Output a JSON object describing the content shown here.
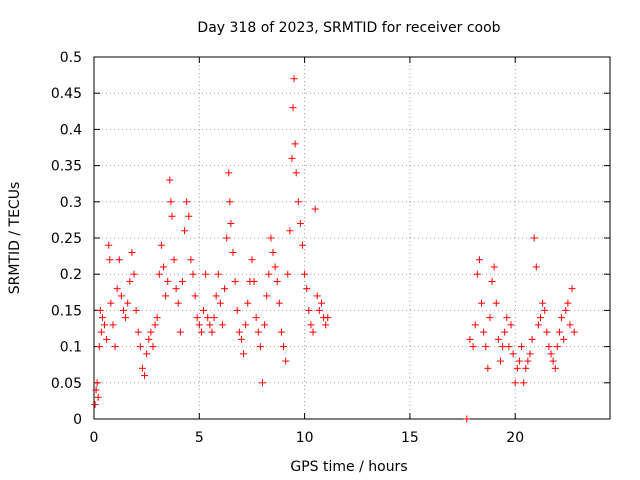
{
  "chart_data": {
    "type": "scatter",
    "title": "Day 318 of 2023, SRMTID for receiver coob",
    "xlabel": "GPS time / hours",
    "ylabel": "SRMTID / TECUs",
    "xlim": [
      0,
      24.5
    ],
    "ylim": [
      0,
      0.5
    ],
    "x_ticks": [
      0,
      5,
      10,
      15,
      20
    ],
    "x_tick_labels": [
      "0",
      "5",
      "10",
      "15",
      "20"
    ],
    "y_ticks": [
      0,
      0.05,
      0.1,
      0.15,
      0.2,
      0.25,
      0.3,
      0.35,
      0.4,
      0.45,
      0.5
    ],
    "y_tick_labels": [
      "0",
      "0.05",
      "0.1",
      "0.15",
      "0.2",
      "0.25",
      "0.3",
      "0.35",
      "0.4",
      "0.45",
      "0.5"
    ],
    "grid": true,
    "marker": "+",
    "marker_color": "#ff0000",
    "series": [
      {
        "name": "SRMTID",
        "points": [
          [
            0.05,
            0.02
          ],
          [
            0.1,
            0.04
          ],
          [
            0.15,
            0.05
          ],
          [
            0.2,
            0.03
          ],
          [
            0.25,
            0.1
          ],
          [
            0.3,
            0.15
          ],
          [
            0.35,
            0.12
          ],
          [
            0.4,
            0.14
          ],
          [
            0.5,
            0.13
          ],
          [
            0.6,
            0.11
          ],
          [
            0.7,
            0.24
          ],
          [
            0.75,
            0.22
          ],
          [
            0.8,
            0.16
          ],
          [
            0.9,
            0.13
          ],
          [
            1.0,
            0.1
          ],
          [
            1.1,
            0.18
          ],
          [
            1.2,
            0.22
          ],
          [
            1.3,
            0.17
          ],
          [
            1.4,
            0.15
          ],
          [
            1.5,
            0.14
          ],
          [
            1.6,
            0.16
          ],
          [
            1.7,
            0.19
          ],
          [
            1.8,
            0.23
          ],
          [
            1.9,
            0.2
          ],
          [
            2.0,
            0.15
          ],
          [
            2.1,
            0.12
          ],
          [
            2.2,
            0.1
          ],
          [
            2.3,
            0.07
          ],
          [
            2.4,
            0.06
          ],
          [
            2.5,
            0.09
          ],
          [
            2.6,
            0.11
          ],
          [
            2.7,
            0.12
          ],
          [
            2.8,
            0.1
          ],
          [
            2.9,
            0.13
          ],
          [
            3.0,
            0.14
          ],
          [
            3.1,
            0.2
          ],
          [
            3.2,
            0.24
          ],
          [
            3.3,
            0.21
          ],
          [
            3.4,
            0.17
          ],
          [
            3.5,
            0.19
          ],
          [
            3.6,
            0.33
          ],
          [
            3.65,
            0.3
          ],
          [
            3.7,
            0.28
          ],
          [
            3.8,
            0.22
          ],
          [
            3.9,
            0.18
          ],
          [
            4.0,
            0.16
          ],
          [
            4.1,
            0.12
          ],
          [
            4.2,
            0.19
          ],
          [
            4.3,
            0.26
          ],
          [
            4.4,
            0.3
          ],
          [
            4.5,
            0.28
          ],
          [
            4.6,
            0.22
          ],
          [
            4.7,
            0.2
          ],
          [
            4.8,
            0.17
          ],
          [
            4.9,
            0.14
          ],
          [
            5.0,
            0.13
          ],
          [
            5.1,
            0.12
          ],
          [
            5.2,
            0.15
          ],
          [
            5.3,
            0.2
          ],
          [
            5.4,
            0.14
          ],
          [
            5.5,
            0.13
          ],
          [
            5.6,
            0.12
          ],
          [
            5.7,
            0.14
          ],
          [
            5.8,
            0.17
          ],
          [
            5.9,
            0.2
          ],
          [
            6.0,
            0.16
          ],
          [
            6.1,
            0.13
          ],
          [
            6.2,
            0.18
          ],
          [
            6.3,
            0.25
          ],
          [
            6.4,
            0.34
          ],
          [
            6.45,
            0.3
          ],
          [
            6.5,
            0.27
          ],
          [
            6.6,
            0.23
          ],
          [
            6.7,
            0.19
          ],
          [
            6.8,
            0.15
          ],
          [
            6.9,
            0.12
          ],
          [
            7.0,
            0.11
          ],
          [
            7.1,
            0.09
          ],
          [
            7.2,
            0.13
          ],
          [
            7.3,
            0.16
          ],
          [
            7.4,
            0.19
          ],
          [
            7.5,
            0.22
          ],
          [
            7.6,
            0.19
          ],
          [
            7.7,
            0.14
          ],
          [
            7.8,
            0.12
          ],
          [
            7.9,
            0.1
          ],
          [
            8.0,
            0.05
          ],
          [
            8.1,
            0.13
          ],
          [
            8.2,
            0.17
          ],
          [
            8.3,
            0.2
          ],
          [
            8.4,
            0.25
          ],
          [
            8.5,
            0.23
          ],
          [
            8.6,
            0.21
          ],
          [
            8.7,
            0.19
          ],
          [
            8.8,
            0.16
          ],
          [
            8.9,
            0.12
          ],
          [
            9.0,
            0.1
          ],
          [
            9.1,
            0.08
          ],
          [
            9.2,
            0.2
          ],
          [
            9.3,
            0.26
          ],
          [
            9.4,
            0.36
          ],
          [
            9.45,
            0.43
          ],
          [
            9.5,
            0.47
          ],
          [
            9.55,
            0.38
          ],
          [
            9.6,
            0.34
          ],
          [
            9.7,
            0.3
          ],
          [
            9.8,
            0.27
          ],
          [
            9.9,
            0.24
          ],
          [
            10.0,
            0.2
          ],
          [
            10.1,
            0.18
          ],
          [
            10.2,
            0.15
          ],
          [
            10.3,
            0.13
          ],
          [
            10.4,
            0.12
          ],
          [
            10.5,
            0.29
          ],
          [
            10.6,
            0.17
          ],
          [
            10.7,
            0.15
          ],
          [
            10.8,
            0.16
          ],
          [
            10.9,
            0.14
          ],
          [
            11.0,
            0.13
          ],
          [
            11.1,
            0.14
          ],
          [
            17.7,
            0.0
          ],
          [
            17.85,
            0.11
          ],
          [
            18.0,
            0.1
          ],
          [
            18.1,
            0.13
          ],
          [
            18.2,
            0.2
          ],
          [
            18.3,
            0.22
          ],
          [
            18.4,
            0.16
          ],
          [
            18.5,
            0.12
          ],
          [
            18.6,
            0.1
          ],
          [
            18.7,
            0.07
          ],
          [
            18.8,
            0.14
          ],
          [
            18.9,
            0.19
          ],
          [
            19.0,
            0.21
          ],
          [
            19.1,
            0.16
          ],
          [
            19.2,
            0.11
          ],
          [
            19.3,
            0.08
          ],
          [
            19.4,
            0.1
          ],
          [
            19.5,
            0.12
          ],
          [
            19.6,
            0.14
          ],
          [
            19.7,
            0.1
          ],
          [
            19.8,
            0.13
          ],
          [
            19.9,
            0.09
          ],
          [
            20.0,
            0.05
          ],
          [
            20.1,
            0.07
          ],
          [
            20.2,
            0.08
          ],
          [
            20.3,
            0.1
          ],
          [
            20.4,
            0.05
          ],
          [
            20.5,
            0.07
          ],
          [
            20.6,
            0.08
          ],
          [
            20.7,
            0.09
          ],
          [
            20.8,
            0.11
          ],
          [
            20.9,
            0.25
          ],
          [
            21.0,
            0.21
          ],
          [
            21.1,
            0.13
          ],
          [
            21.2,
            0.14
          ],
          [
            21.3,
            0.16
          ],
          [
            21.4,
            0.15
          ],
          [
            21.5,
            0.12
          ],
          [
            21.6,
            0.1
          ],
          [
            21.7,
            0.09
          ],
          [
            21.8,
            0.08
          ],
          [
            21.9,
            0.07
          ],
          [
            22.0,
            0.1
          ],
          [
            22.1,
            0.12
          ],
          [
            22.2,
            0.14
          ],
          [
            22.3,
            0.11
          ],
          [
            22.4,
            0.15
          ],
          [
            22.5,
            0.16
          ],
          [
            22.6,
            0.13
          ],
          [
            22.7,
            0.18
          ],
          [
            22.8,
            0.12
          ]
        ]
      }
    ]
  }
}
